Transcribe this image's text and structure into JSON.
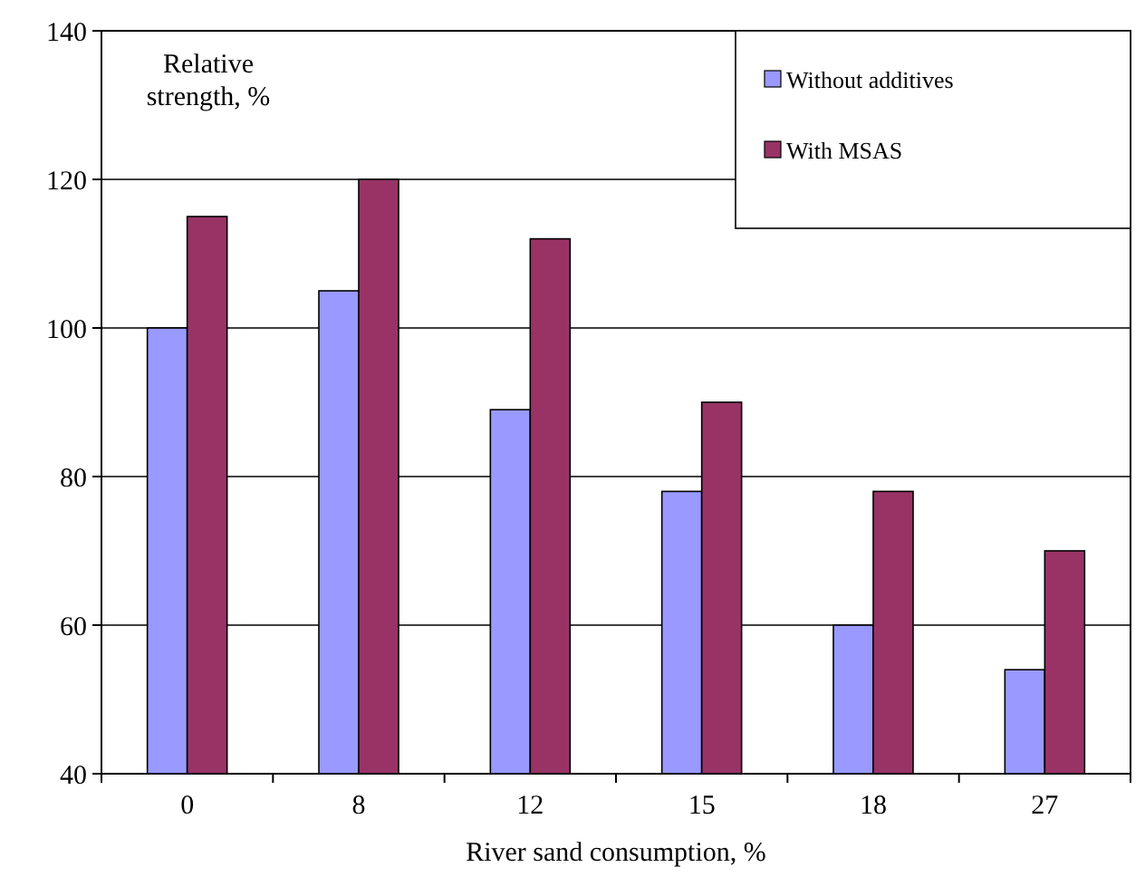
{
  "chart_data": {
    "type": "bar",
    "xlabel": "River sand consumption, %",
    "ylabel": "Relative strength, %",
    "categories": [
      "0",
      "8",
      "12",
      "15",
      "18",
      "27"
    ],
    "series": [
      {
        "name": "Without additives",
        "color": "#9999ff",
        "values": [
          100,
          105,
          89,
          78,
          60,
          54
        ]
      },
      {
        "name": "With MSAS",
        "color": "#993366",
        "values": [
          115,
          120,
          112,
          90,
          78,
          70
        ]
      }
    ],
    "ylim": [
      40,
      140
    ],
    "yticks": [
      40,
      60,
      80,
      100,
      120,
      140
    ],
    "grid": "y",
    "legend": "top right"
  }
}
